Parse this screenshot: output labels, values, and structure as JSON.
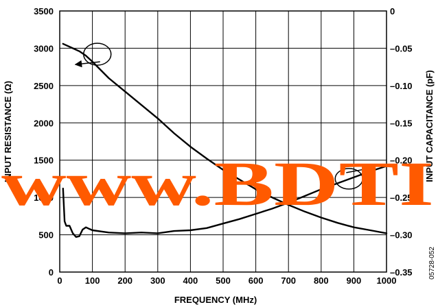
{
  "chart_data": {
    "type": "line",
    "title": "",
    "xlabel": "FREQUENCY (MHz)",
    "ylabel_left": "INPUT RESISTANCE (Ω)",
    "ylabel_right": "INPUT CAPACITANCE (pF)",
    "xlim": [
      0,
      1000
    ],
    "ylim_left": [
      0,
      3500
    ],
    "ylim_right": [
      -0.35,
      0
    ],
    "x_ticks": [
      "0",
      "100",
      "200",
      "300",
      "400",
      "500",
      "600",
      "700",
      "800",
      "900",
      "1000"
    ],
    "y_left_ticks": [
      "0",
      "500",
      "1000",
      "1500",
      "2000",
      "2500",
      "3000",
      "3500"
    ],
    "y_right_ticks": [
      "0",
      "–0.05",
      "–0.10",
      "–0.15",
      "–0.20",
      "–0.25",
      "–0.30",
      "–0.35"
    ],
    "grid": true,
    "series": [
      {
        "axis": "left",
        "x": [
          10,
          20,
          40,
          60,
          80,
          100,
          150,
          200,
          250,
          300,
          350,
          400,
          450,
          500,
          550,
          600,
          650,
          700,
          750,
          800,
          850,
          900,
          950,
          1000
        ],
        "y": [
          3060,
          3040,
          3000,
          2960,
          2900,
          2820,
          2600,
          2420,
          2240,
          2060,
          1860,
          1680,
          1520,
          1370,
          1240,
          1110,
          1000,
          900,
          810,
          730,
          660,
          600,
          560,
          520
        ]
      },
      {
        "axis": "right",
        "x": [
          10,
          15,
          20,
          30,
          40,
          50,
          60,
          70,
          80,
          90,
          100,
          150,
          200,
          250,
          300,
          350,
          400,
          450,
          500,
          550,
          600,
          650,
          700,
          750,
          800,
          850,
          900,
          950,
          1000
        ],
        "y": [
          -0.238,
          -0.282,
          -0.288,
          -0.288,
          -0.298,
          -0.303,
          -0.302,
          -0.293,
          -0.29,
          -0.292,
          -0.294,
          -0.297,
          -0.298,
          -0.297,
          -0.298,
          -0.295,
          -0.294,
          -0.291,
          -0.285,
          -0.279,
          -0.272,
          -0.265,
          -0.257,
          -0.248,
          -0.239,
          -0.231,
          -0.223,
          -0.215,
          -0.208
        ]
      }
    ],
    "watermark": "www.BDTI",
    "figure_id": "05728-052"
  }
}
